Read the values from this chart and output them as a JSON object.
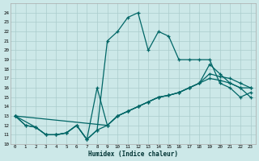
{
  "xlabel": "Humidex (Indice chaleur)",
  "bg_color": "#cce8e8",
  "grid_color": "#aacccc",
  "line_color": "#006666",
  "xlim": [
    -0.5,
    23.5
  ],
  "ylim": [
    10,
    25
  ],
  "xticks": [
    0,
    1,
    2,
    3,
    4,
    5,
    6,
    7,
    8,
    9,
    10,
    11,
    12,
    13,
    14,
    15,
    16,
    17,
    18,
    19,
    20,
    21,
    22,
    23
  ],
  "yticks": [
    10,
    11,
    12,
    13,
    14,
    15,
    16,
    17,
    18,
    19,
    20,
    21,
    22,
    23,
    24
  ],
  "lines": [
    {
      "x": [
        0,
        1,
        2,
        3,
        4,
        5,
        6,
        7,
        8,
        9,
        10,
        11,
        12,
        13,
        14,
        15,
        16,
        17,
        18,
        19,
        20,
        21,
        22,
        23
      ],
      "y": [
        13,
        12,
        11.8,
        11,
        11,
        11.2,
        12,
        10.5,
        11.5,
        12,
        13,
        13.5,
        14,
        14.5,
        15,
        15.2,
        15.5,
        16,
        16.5,
        17,
        16.8,
        16.5,
        16,
        15
      ]
    },
    {
      "x": [
        0,
        1,
        2,
        3,
        4,
        5,
        6,
        7,
        8,
        9,
        10,
        11,
        12,
        13,
        14,
        15,
        16,
        17,
        18,
        19,
        20,
        21,
        22,
        23
      ],
      "y": [
        13,
        12,
        11.8,
        11,
        11,
        11.2,
        12,
        10.5,
        11.5,
        21,
        22,
        23.5,
        24,
        20,
        22,
        21.5,
        19,
        19,
        19,
        19,
        16.5,
        16,
        15,
        15.5
      ]
    },
    {
      "x": [
        0,
        2,
        3,
        4,
        5,
        6,
        7,
        8,
        9,
        10,
        11,
        12,
        13,
        14,
        15,
        16,
        17,
        18,
        19,
        20,
        21,
        22,
        23
      ],
      "y": [
        13,
        11.8,
        11,
        11,
        11.2,
        12,
        10.5,
        16,
        12,
        13,
        13.5,
        14,
        14.5,
        15,
        15.2,
        15.5,
        16,
        16.5,
        17.5,
        17.2,
        17,
        16.5,
        16
      ]
    },
    {
      "x": [
        0,
        9,
        10,
        11,
        12,
        13,
        14,
        15,
        16,
        17,
        18,
        19,
        20,
        21,
        22,
        23
      ],
      "y": [
        13,
        12,
        13,
        13.5,
        14,
        14.5,
        15,
        15.2,
        15.5,
        16,
        16.5,
        18.5,
        17.5,
        16.5,
        16,
        16
      ]
    }
  ]
}
